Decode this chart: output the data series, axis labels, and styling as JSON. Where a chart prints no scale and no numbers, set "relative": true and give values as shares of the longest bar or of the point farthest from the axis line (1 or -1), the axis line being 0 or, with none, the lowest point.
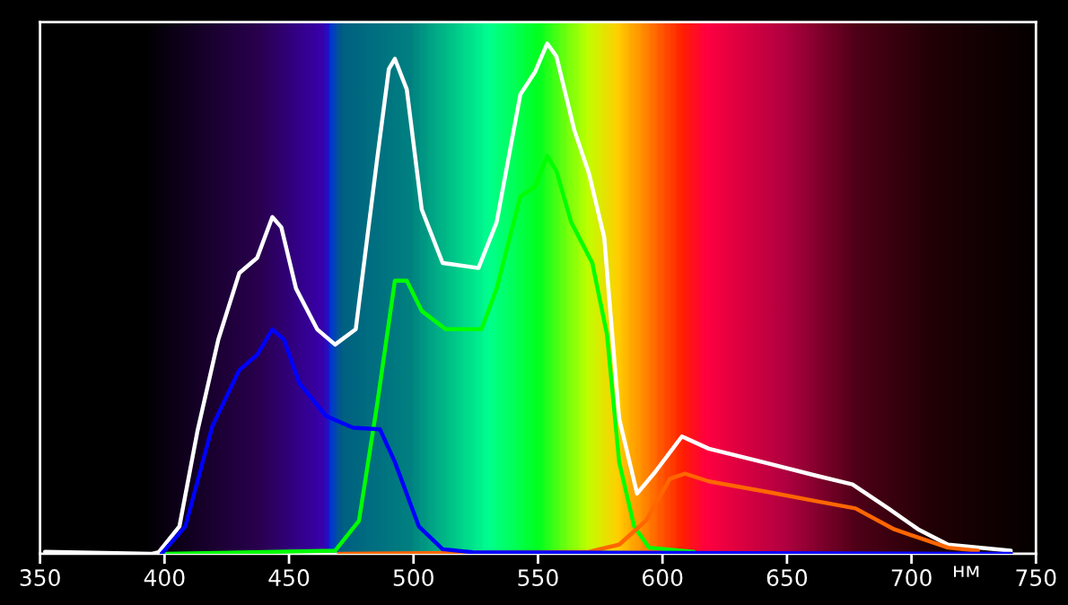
{
  "chart_data": {
    "type": "line",
    "relative": true,
    "xlabel": "нм",
    "xlim": [
      350,
      750
    ],
    "xticks": [
      350,
      400,
      450,
      500,
      550,
      600,
      650,
      700,
      750
    ],
    "grid": false,
    "legend": false,
    "marker": "none",
    "line_style": "solid",
    "series": [
      {
        "color": "#ffffff",
        "x": [
          352,
          395,
          397.6,
          406,
          413.2,
          421.6,
          430,
          437.2,
          443.3,
          446.9,
          452.8,
          461.3,
          468.5,
          476.8,
          485.3,
          490.1,
          492.5,
          497.3,
          503.3,
          511.7,
          526.1,
          533.4,
          542.9,
          548.9,
          553.7,
          557.4,
          564.6,
          570.5,
          576.6,
          582.6,
          589.8,
          597,
          607.8,
          618.6,
          642.6,
          661.9,
          676.3,
          690.7,
          702.7,
          714.7,
          739.9
        ],
        "values": [
          0.004,
          0.0,
          0.003,
          0.054,
          0.24,
          0.42,
          0.55,
          0.58,
          0.66,
          0.64,
          0.52,
          0.44,
          0.41,
          0.44,
          0.77,
          0.95,
          0.97,
          0.91,
          0.675,
          0.57,
          0.56,
          0.65,
          0.9,
          0.945,
          1.0,
          0.975,
          0.83,
          0.745,
          0.62,
          0.265,
          0.118,
          0.16,
          0.23,
          0.206,
          0.177,
          0.153,
          0.136,
          0.089,
          0.048,
          0.018,
          0.006
        ]
      },
      {
        "color": "#00ff00",
        "x": [
          400,
          468.5,
          478.1,
          485.3,
          492.5,
          497.3,
          503.3,
          512.9,
          527.3,
          533.4,
          542.9,
          548.9,
          553.7,
          557.4,
          563.3,
          571.8,
          577.7,
          582.6,
          588.6,
          594.6,
          612.6
        ],
        "values": [
          0.0,
          0.006,
          0.065,
          0.29,
          0.535,
          0.535,
          0.476,
          0.44,
          0.44,
          0.52,
          0.7,
          0.72,
          0.78,
          0.75,
          0.65,
          0.57,
          0.43,
          0.18,
          0.054,
          0.012,
          0.004
        ]
      },
      {
        "color": "#ff6600",
        "x": [
          470,
          570.5,
          582.6,
          593.4,
          603,
          609,
          618.6,
          642.6,
          661.9,
          677.5,
          693.1,
          714.7,
          726.7
        ],
        "values": [
          0.0,
          0.004,
          0.018,
          0.065,
          0.147,
          0.157,
          0.142,
          0.121,
          0.103,
          0.089,
          0.048,
          0.012,
          0.006
        ]
      },
      {
        "color": "#0000ff",
        "x": [
          398.8,
          408.4,
          419.2,
          430,
          437.2,
          443.3,
          448,
          454.1,
          464.9,
          475.7,
          486.5,
          492.5,
          502.1,
          511.7,
          523.7,
          740
        ],
        "values": [
          0.0,
          0.054,
          0.25,
          0.36,
          0.39,
          0.44,
          0.42,
          0.335,
          0.27,
          0.247,
          0.244,
          0.18,
          0.054,
          0.009,
          0.003,
          0.0
        ]
      }
    ]
  }
}
